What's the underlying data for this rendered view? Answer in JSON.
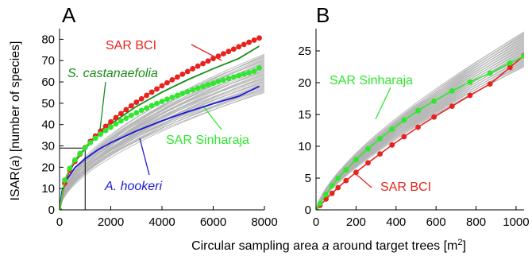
{
  "figure": {
    "ylabel_prefix": "ISAR(",
    "ylabel_var": "a",
    "ylabel_suffix": ") [number of species]",
    "xlabel_prefix": "Circular sampling area ",
    "xlabel_var": "a",
    "xlabel_suffix": " around target trees [m",
    "xlabel_sup": "2",
    "xlabel_end": "]"
  },
  "colors": {
    "sar_bci": "#e8231f",
    "sar_bci_dot": "#e8231f",
    "sar_sinharaja": "#2ee82e",
    "s_castanaefolia": "#1a8c1a",
    "a_hookeri": "#1a1ad9",
    "envelope": "#b3b3b3"
  },
  "chart_data": [
    {
      "panel": "A",
      "type": "line",
      "xlim": [
        0,
        8000
      ],
      "ylim": [
        0,
        85
      ],
      "xticks": [
        0,
        2000,
        4000,
        6000,
        8000
      ],
      "yticks": [
        0,
        10,
        20,
        30,
        40,
        50,
        60,
        70,
        80
      ],
      "xtick_labels": [
        "0",
        "2000",
        "4000",
        "6000",
        "8000"
      ],
      "ytick_labels": [
        "0",
        "10",
        "20",
        "30",
        "40",
        "50",
        "60",
        "70",
        "80"
      ],
      "grid": false,
      "guide_lines": {
        "x": 1000,
        "y": 29
      },
      "series": [
        {
          "name": "SAR BCI",
          "color_key": "sar_bci",
          "markers": true,
          "x": [
            0,
            200,
            400,
            600,
            800,
            1000,
            1200,
            1400,
            1600,
            1800,
            2000,
            2200,
            2400,
            2600,
            2800,
            3000,
            3200,
            3400,
            3600,
            3800,
            4000,
            4200,
            4400,
            4600,
            4800,
            5000,
            5200,
            5400,
            5600,
            5800,
            6000,
            6200,
            6400,
            6600,
            6800,
            7000,
            7200,
            7400,
            7600,
            7800
          ],
          "y": [
            0,
            12.5,
            18.5,
            22.7,
            26.2,
            29.3,
            32.1,
            34.6,
            37.0,
            39.2,
            41.3,
            43.3,
            45.2,
            47.0,
            48.8,
            50.5,
            52.1,
            53.7,
            55.2,
            56.7,
            58.2,
            59.6,
            61.0,
            62.3,
            63.6,
            64.9,
            66.2,
            67.4,
            68.6,
            69.8,
            71.0,
            72.1,
            73.2,
            74.3,
            75.4,
            76.5,
            77.6,
            78.6,
            79.6,
            80.6
          ]
        },
        {
          "name": "SAR Sinharaja",
          "color_key": "sar_sinharaja",
          "markers": true,
          "x": [
            0,
            200,
            400,
            600,
            800,
            1000,
            1200,
            1400,
            1600,
            1800,
            2000,
            2200,
            2400,
            2600,
            2800,
            3000,
            3200,
            3400,
            3600,
            3800,
            4000,
            4200,
            4400,
            4600,
            4800,
            5000,
            5200,
            5400,
            5600,
            5800,
            6000,
            6200,
            6400,
            6600,
            6800,
            7000,
            7200,
            7400,
            7600,
            7800
          ],
          "y": [
            0,
            14.0,
            19.5,
            23.4,
            26.5,
            29.2,
            31.5,
            33.6,
            35.5,
            37.2,
            38.8,
            40.3,
            41.7,
            43.0,
            44.3,
            45.5,
            46.7,
            47.8,
            48.9,
            49.9,
            50.9,
            51.9,
            52.8,
            53.7,
            54.6,
            55.4,
            56.3,
            57.1,
            57.9,
            58.7,
            59.4,
            60.2,
            60.9,
            61.6,
            62.3,
            63.0,
            63.7,
            64.3,
            65.0,
            66.6
          ]
        },
        {
          "name": "S. castanaefolia",
          "color_key": "s_castanaefolia",
          "markers": false,
          "x": [
            0,
            100,
            300,
            600,
            1000,
            1500,
            2000,
            3000,
            4000,
            5000,
            6000,
            7000,
            7800
          ],
          "y": [
            0,
            9.0,
            16.0,
            22.5,
            28.8,
            35.0,
            40.3,
            48.5,
            55.2,
            61.0,
            66.2,
            71.0,
            76.8
          ]
        },
        {
          "name": "A. hookeri",
          "color_key": "a_hookeri",
          "markers": false,
          "x": [
            0,
            100,
            300,
            600,
            1000,
            1500,
            2000,
            3000,
            4000,
            5000,
            6000,
            7000,
            7800
          ],
          "y": [
            0,
            8.5,
            14.5,
            19.8,
            24.0,
            28.2,
            31.5,
            37.0,
            41.8,
            46.0,
            49.8,
            53.3,
            58.0
          ]
        }
      ],
      "envelope": {
        "count": 40,
        "low_final": 55,
        "high_final": 73
      }
    },
    {
      "panel": "B",
      "type": "line",
      "xlim": [
        0,
        1040
      ],
      "ylim": [
        0,
        28.5
      ],
      "xticks": [
        0,
        200,
        400,
        600,
        800,
        1000
      ],
      "yticks": [
        0,
        5,
        10,
        15,
        20,
        25
      ],
      "xtick_labels": [
        "0",
        "200",
        "400",
        "600",
        "800",
        "1000"
      ],
      "ytick_labels": [
        "0",
        "5",
        "10",
        "15",
        "20",
        "25"
      ],
      "grid": false,
      "series": [
        {
          "name": "SAR BCI",
          "color_key": "sar_bci",
          "markers": true,
          "x": [
            0,
            20,
            50,
            80,
            110,
            150,
            200,
            260,
            320,
            380,
            440,
            510,
            590,
            680,
            770,
            870,
            970,
            1040
          ],
          "y": [
            0,
            0.7,
            1.7,
            2.6,
            3.5,
            4.6,
            5.9,
            7.4,
            8.8,
            10.2,
            11.5,
            13.0,
            14.6,
            16.3,
            18.0,
            19.8,
            22.4,
            24.3
          ]
        },
        {
          "name": "SAR Sinharaja",
          "color_key": "sar_sinharaja",
          "markers": true,
          "x": [
            0,
            20,
            50,
            80,
            110,
            150,
            200,
            260,
            320,
            380,
            440,
            510,
            590,
            680,
            770,
            870,
            970,
            1040
          ],
          "y": [
            0,
            1.0,
            2.4,
            3.8,
            5.0,
            6.3,
            7.9,
            9.6,
            11.2,
            12.7,
            14.1,
            15.6,
            17.1,
            18.7,
            20.1,
            21.5,
            23.1,
            24.2
          ]
        }
      ],
      "envelope": {
        "count": 40,
        "low_final": 22.5,
        "high_final": 28
      }
    }
  ],
  "annotations": {
    "panelA": "A",
    "panelB": "B",
    "a_sar_bci": "SAR BCI",
    "a_s_castanaefolia": "S. castanaefolia",
    "a_sar_sinharaja": "SAR Sinharaja",
    "a_a_hookeri": "A. hookeri",
    "b_sar_sinharaja": "SAR Sinharaja",
    "b_sar_bci": "SAR BCI"
  }
}
